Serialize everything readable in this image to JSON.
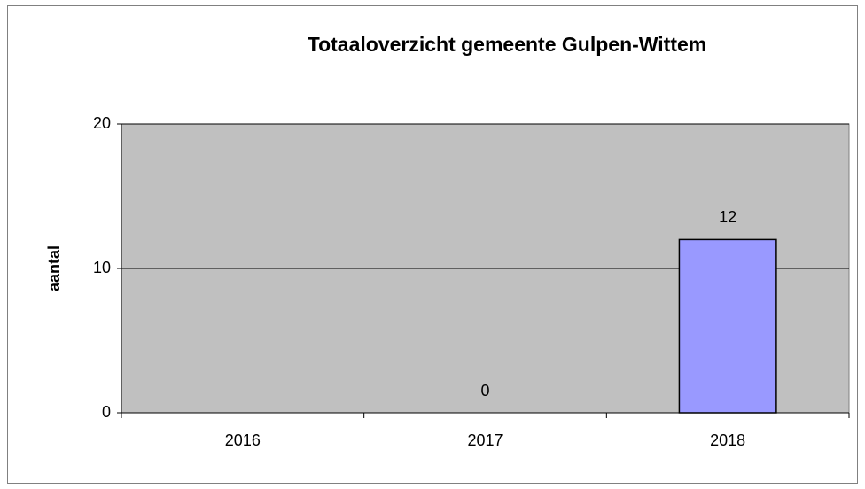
{
  "chart_data": {
    "type": "bar",
    "title": "Totaaloverzicht gemeente Gulpen-Wittem",
    "y_label": "aantal",
    "categories": [
      "2016",
      "2017",
      "2018"
    ],
    "values": [
      null,
      0,
      12
    ],
    "color": "#9999ff",
    "ylim": [
      0,
      20
    ],
    "yticks": [
      0,
      10,
      20
    ],
    "grid": true
  }
}
